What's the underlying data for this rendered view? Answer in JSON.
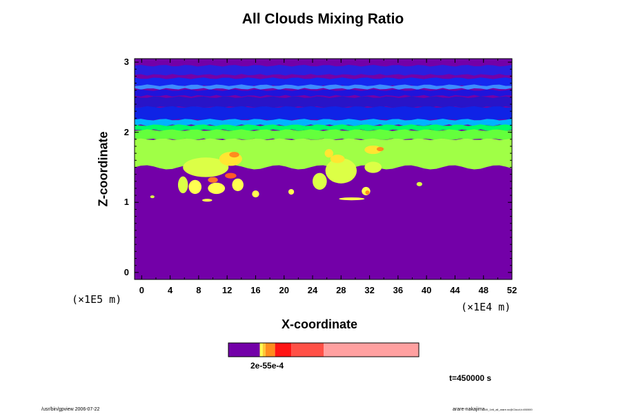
{
  "chart_data": {
    "type": "heatmap",
    "title": "All Clouds Mixing Ratio",
    "xlabel": "X-coordinate",
    "ylabel": "Z-coordinate",
    "x_unit": "(×1E4 m)",
    "y_unit": "(×1E5 m)",
    "xlim": [
      -1,
      52
    ],
    "ylim": [
      -0.1,
      3.05
    ],
    "x_ticks": [
      "0",
      "4",
      "8",
      "12",
      "16",
      "20",
      "24",
      "28",
      "32",
      "36",
      "40",
      "44",
      "48",
      "52"
    ],
    "y_ticks": [
      "0",
      "1",
      "2",
      "3"
    ],
    "background_color": "#7300a8",
    "bands": [
      {
        "z0": 2.82,
        "z1": 2.95,
        "color": "#2a1ee0"
      },
      {
        "z0": 2.66,
        "z1": 2.77,
        "color": "#1428f0"
      },
      {
        "z0": 2.62,
        "z1": 2.67,
        "color": "#3c8cff"
      },
      {
        "z0": 2.52,
        "z1": 2.6,
        "color": "#1e14dc"
      },
      {
        "z0": 2.36,
        "z1": 2.5,
        "color": "#2814c8"
      },
      {
        "z0": 2.18,
        "z1": 2.36,
        "color": "#0f23e6"
      },
      {
        "z0": 2.1,
        "z1": 2.18,
        "color": "#00b4ff"
      },
      {
        "z0": 2.03,
        "z1": 2.1,
        "color": "#00ff64"
      },
      {
        "z0": 1.9,
        "z1": 2.03,
        "color": "#64ff3c"
      },
      {
        "z0": 1.5,
        "z1": 1.9,
        "color": "#a0ff46"
      }
    ],
    "features": [
      {
        "x": 9,
        "z": 1.5,
        "rx": 3.2,
        "rz": 0.14,
        "color": "#dcff46"
      },
      {
        "x": 12.5,
        "z": 1.62,
        "rx": 1.6,
        "rz": 0.1,
        "color": "#ffe632"
      },
      {
        "x": 13,
        "z": 1.68,
        "rx": 0.7,
        "rz": 0.04,
        "color": "#ff8c1e"
      },
      {
        "x": 12.5,
        "z": 1.38,
        "rx": 0.8,
        "rz": 0.04,
        "color": "#ff5a28"
      },
      {
        "x": 10,
        "z": 1.32,
        "rx": 0.7,
        "rz": 0.04,
        "color": "#ff7828"
      },
      {
        "x": 7.5,
        "z": 1.22,
        "rx": 0.9,
        "rz": 0.1,
        "color": "#ffff50"
      },
      {
        "x": 10.5,
        "z": 1.2,
        "rx": 1.2,
        "rz": 0.08,
        "color": "#ffff50"
      },
      {
        "x": 13.5,
        "z": 1.25,
        "rx": 0.8,
        "rz": 0.09,
        "color": "#ffff50"
      },
      {
        "x": 5.8,
        "z": 1.25,
        "rx": 0.7,
        "rz": 0.12,
        "color": "#dcff46"
      },
      {
        "x": 16,
        "z": 1.12,
        "rx": 0.5,
        "rz": 0.05,
        "color": "#ffff50"
      },
      {
        "x": 21,
        "z": 1.15,
        "rx": 0.4,
        "rz": 0.04,
        "color": "#ffff50"
      },
      {
        "x": 25,
        "z": 1.3,
        "rx": 1.0,
        "rz": 0.12,
        "color": "#dcff46"
      },
      {
        "x": 28,
        "z": 1.45,
        "rx": 2.2,
        "rz": 0.18,
        "color": "#dcff46"
      },
      {
        "x": 27.5,
        "z": 1.62,
        "rx": 1.0,
        "rz": 0.06,
        "color": "#ffe632"
      },
      {
        "x": 26.3,
        "z": 1.7,
        "rx": 0.6,
        "rz": 0.06,
        "color": "#ffe632"
      },
      {
        "x": 32.5,
        "z": 1.5,
        "rx": 1.2,
        "rz": 0.08,
        "color": "#dcff46"
      },
      {
        "x": 32.5,
        "z": 1.75,
        "rx": 1.2,
        "rz": 0.06,
        "color": "#ffe632"
      },
      {
        "x": 33.5,
        "z": 1.76,
        "rx": 0.5,
        "rz": 0.03,
        "color": "#ff8c1e"
      },
      {
        "x": 31.5,
        "z": 1.16,
        "rx": 0.6,
        "rz": 0.06,
        "color": "#ffff50"
      },
      {
        "x": 31.7,
        "z": 1.14,
        "rx": 0.3,
        "rz": 0.03,
        "color": "#ff8c1e"
      },
      {
        "x": 29.5,
        "z": 1.05,
        "rx": 1.8,
        "rz": 0.02,
        "color": "#ffff50"
      },
      {
        "x": 9.2,
        "z": 1.03,
        "rx": 0.7,
        "rz": 0.02,
        "color": "#ffff50"
      },
      {
        "x": 1.5,
        "z": 1.08,
        "rx": 0.3,
        "rz": 0.02,
        "color": "#dcff46"
      },
      {
        "x": 39,
        "z": 1.26,
        "rx": 0.4,
        "rz": 0.03,
        "color": "#dcff46"
      }
    ],
    "colorbar": {
      "label": "2e-55e-4",
      "segments": [
        {
          "from": 0.0,
          "to": 0.165,
          "color": "#7300a8"
        },
        {
          "from": 0.165,
          "to": 0.18,
          "color": "#ffff50"
        },
        {
          "from": 0.18,
          "to": 0.195,
          "color": "#ffc832"
        },
        {
          "from": 0.195,
          "to": 0.245,
          "color": "#ff8c1e"
        },
        {
          "from": 0.245,
          "to": 0.33,
          "color": "#ff1414"
        },
        {
          "from": 0.33,
          "to": 0.5,
          "color": "#ff5046"
        },
        {
          "from": 0.5,
          "to": 1.0,
          "color": "#ffa0a0"
        }
      ]
    },
    "timestamp": "t=450000 s"
  },
  "footer": {
    "left": "/usr/bin/gpview 2006-07-22",
    "right_main": "arare-nakajima",
    "right_small": "00_1e6_all_arare.nc@Cloud,t=450000"
  }
}
